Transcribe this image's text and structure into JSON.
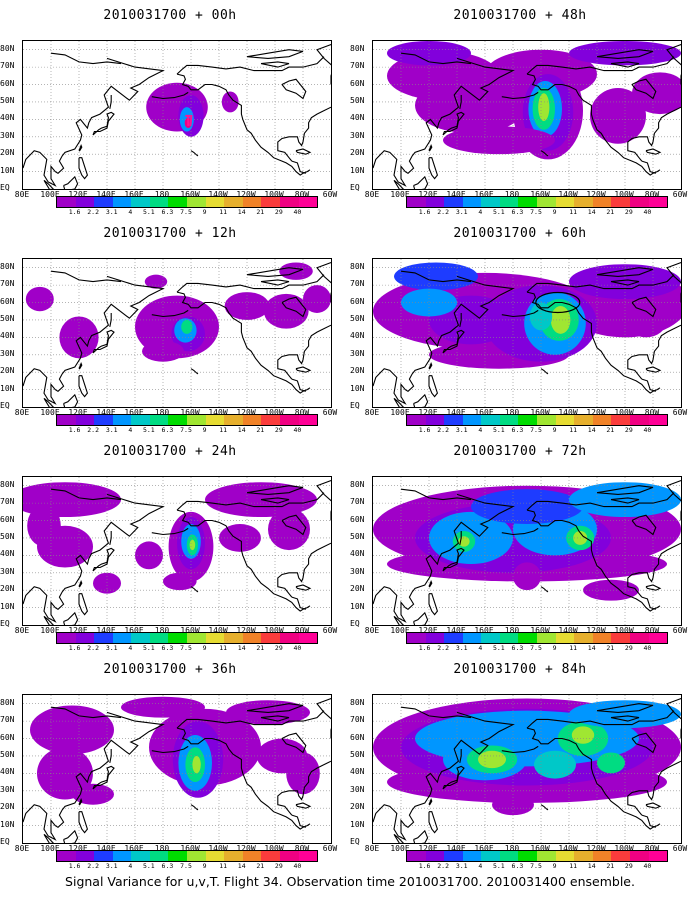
{
  "panels": [
    {
      "title": "2010031700 + 00h",
      "field": "f00"
    },
    {
      "title": "2010031700 + 48h",
      "field": "f48"
    },
    {
      "title": "2010031700 + 12h",
      "field": "f12"
    },
    {
      "title": "2010031700 + 60h",
      "field": "f60"
    },
    {
      "title": "2010031700 + 24h",
      "field": "f24"
    },
    {
      "title": "2010031700 + 72h",
      "field": "f72"
    },
    {
      "title": "2010031700 + 36h",
      "field": "f36"
    },
    {
      "title": "2010031700 + 84h",
      "field": "f84"
    }
  ],
  "lat_labels": [
    "80N",
    "70N",
    "60N",
    "50N",
    "40N",
    "30N",
    "20N",
    "10N",
    "EQ"
  ],
  "lon_labels": [
    "80E",
    "100E",
    "120E",
    "140E",
    "160E",
    "180",
    "160W",
    "140W",
    "120W",
    "100W",
    "80W",
    "60W"
  ],
  "colorbar": {
    "levels": [
      "1.6",
      "2.2",
      "3.1",
      "4",
      "5.1",
      "6.3",
      "7.5",
      "9",
      "11",
      "14",
      "21",
      "29",
      "40"
    ],
    "colors": [
      "#a000c8",
      "#8200dc",
      "#1e3cff",
      "#0096ff",
      "#00c8c8",
      "#00dc82",
      "#00dc00",
      "#a0e632",
      "#e6dc32",
      "#e6af2d",
      "#f08228",
      "#fa3c3c",
      "#f00082",
      "#ff0096"
    ]
  },
  "footer": "Signal Variance for u,v,T. Flight 34. Observation time 2010031700. 2010031400 ensemble."
}
